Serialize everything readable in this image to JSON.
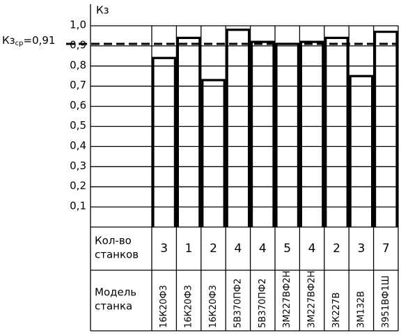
{
  "chart_data": {
    "type": "bar",
    "y_label": "Кз",
    "categories": [
      "16К20Ф3",
      "16К20Ф3",
      "16К20Ф3",
      "5В370ПФ2",
      "5В370ПФ2",
      "3М227ВФ2Н",
      "3М227ВФ2Н",
      "3К227В",
      "3М132В",
      "3951ВФ1Ш"
    ],
    "values": [
      0.84,
      0.94,
      0.73,
      0.98,
      0.92,
      0.91,
      0.92,
      0.94,
      0.75,
      0.97
    ],
    "counts": [
      3,
      1,
      2,
      4,
      4,
      5,
      4,
      2,
      3,
      7
    ],
    "count_row_label": [
      "Кол-во",
      "станков"
    ],
    "model_row_label": [
      "Модель",
      "станка"
    ],
    "mean": {
      "value": 0.91,
      "label_parts": [
        "Кз",
        "ср",
        "=0,91"
      ]
    },
    "color": "#000000",
    "ylim": [
      0,
      1
    ],
    "yticks": [
      {
        "value": 0.1,
        "label": "0,1"
      },
      {
        "value": 0.2,
        "label": "0,2"
      },
      {
        "value": 0.3,
        "label": "0,3"
      },
      {
        "value": 0.4,
        "label": "0,4"
      },
      {
        "value": 0.5,
        "label": "0,5"
      },
      {
        "value": 0.6,
        "label": "0,6"
      },
      {
        "value": 0.7,
        "label": "0,7"
      },
      {
        "value": 0.8,
        "label": "0,8"
      },
      {
        "value": 0.9,
        "label": "0,9"
      },
      {
        "value": 1,
        "label": "1,0"
      }
    ],
    "grid": true
  }
}
